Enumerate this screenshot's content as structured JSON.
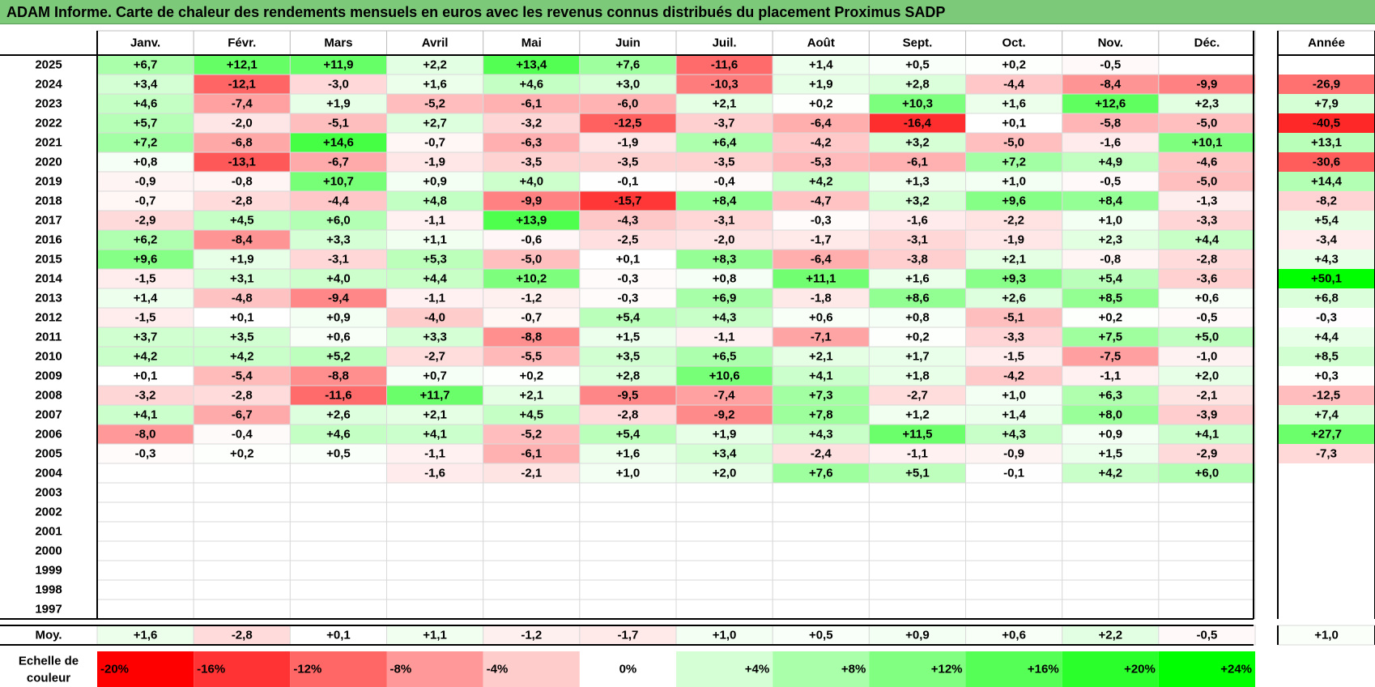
{
  "chart_data": {
    "type": "heatmap",
    "title": "ADAM Informe. Carte de chaleur des rendements mensuels en euros avec les revenus connus distribués du placement Proximus SADP",
    "months": [
      "Janv.",
      "Févr.",
      "Mars",
      "Avril",
      "Mai",
      "Juin",
      "Juil.",
      "Août",
      "Sept.",
      "Oct.",
      "Nov.",
      "Déc."
    ],
    "year_header": "Année",
    "years": [
      "2025",
      "2024",
      "2023",
      "2022",
      "2021",
      "2020",
      "2019",
      "2018",
      "2017",
      "2016",
      "2015",
      "2014",
      "2013",
      "2012",
      "2011",
      "2010",
      "2009",
      "2008",
      "2007",
      "2006",
      "2005",
      "2004",
      "2003",
      "2002",
      "2001",
      "2000",
      "1999",
      "1998",
      "1997"
    ],
    "values": [
      [
        "+6,7",
        "+12,1",
        "+11,9",
        "+2,2",
        "+13,4",
        "+7,6",
        "-11,6",
        "+1,4",
        "+0,5",
        "+0,2",
        "-0,5",
        ""
      ],
      [
        "+3,4",
        "-12,1",
        "-3,0",
        "+1,6",
        "+4,6",
        "+3,0",
        "-10,3",
        "+1,9",
        "+2,8",
        "-4,4",
        "-8,4",
        "-9,9"
      ],
      [
        "+4,6",
        "-7,4",
        "+1,9",
        "-5,2",
        "-6,1",
        "-6,0",
        "+2,1",
        "+0,2",
        "+10,3",
        "+1,6",
        "+12,6",
        "+2,3"
      ],
      [
        "+5,7",
        "-2,0",
        "-5,1",
        "+2,7",
        "-3,2",
        "-12,5",
        "-3,7",
        "-6,4",
        "-16,4",
        "+0,1",
        "-5,8",
        "-5,0"
      ],
      [
        "+7,2",
        "-6,8",
        "+14,6",
        "-0,7",
        "-6,3",
        "-1,9",
        "+6,4",
        "-4,2",
        "+3,2",
        "-5,0",
        "-1,6",
        "+10,1"
      ],
      [
        "+0,8",
        "-13,1",
        "-6,7",
        "-1,9",
        "-3,5",
        "-3,5",
        "-3,5",
        "-5,3",
        "-6,1",
        "+7,2",
        "+4,9",
        "-4,6"
      ],
      [
        "-0,9",
        "-0,8",
        "+10,7",
        "+0,9",
        "+4,0",
        "-0,1",
        "-0,4",
        "+4,2",
        "+1,3",
        "+1,0",
        "-0,5",
        "-5,0"
      ],
      [
        "-0,7",
        "-2,8",
        "-4,4",
        "+4,8",
        "-9,9",
        "-15,7",
        "+8,4",
        "-4,7",
        "+3,2",
        "+9,6",
        "+8,4",
        "-1,3"
      ],
      [
        "-2,9",
        "+4,5",
        "+6,0",
        "-1,1",
        "+13,9",
        "-4,3",
        "-3,1",
        "-0,3",
        "-1,6",
        "-2,2",
        "+1,0",
        "-3,3"
      ],
      [
        "+6,2",
        "-8,4",
        "+3,3",
        "+1,1",
        "-0,6",
        "-2,5",
        "-2,0",
        "-1,7",
        "-3,1",
        "-1,9",
        "+2,3",
        "+4,4"
      ],
      [
        "+9,6",
        "+1,9",
        "-3,1",
        "+5,3",
        "-5,0",
        "+0,1",
        "+8,3",
        "-6,4",
        "-3,8",
        "+2,1",
        "-0,8",
        "-2,8"
      ],
      [
        "-1,5",
        "+3,1",
        "+4,0",
        "+4,4",
        "+10,2",
        "-0,3",
        "+0,8",
        "+11,1",
        "+1,6",
        "+9,3",
        "+5,4",
        "-3,6"
      ],
      [
        "+1,4",
        "-4,8",
        "-9,4",
        "-1,1",
        "-1,2",
        "-0,3",
        "+6,9",
        "-1,8",
        "+8,6",
        "+2,6",
        "+8,5",
        "+0,6"
      ],
      [
        "-1,5",
        "+0,1",
        "+0,9",
        "-4,0",
        "-0,7",
        "+5,4",
        "+4,3",
        "+0,6",
        "+0,8",
        "-5,1",
        "+0,2",
        "-0,5"
      ],
      [
        "+3,7",
        "+3,5",
        "+0,6",
        "+3,3",
        "-8,8",
        "+1,5",
        "-1,1",
        "-7,1",
        "+0,2",
        "-3,3",
        "+7,5",
        "+5,0"
      ],
      [
        "+4,2",
        "+4,2",
        "+5,2",
        "-2,7",
        "-5,5",
        "+3,5",
        "+6,5",
        "+2,1",
        "+1,7",
        "-1,5",
        "-7,5",
        "-1,0"
      ],
      [
        "+0,1",
        "-5,4",
        "-8,8",
        "+0,7",
        "+0,2",
        "+2,8",
        "+10,6",
        "+4,1",
        "+1,8",
        "-4,2",
        "-1,1",
        "+2,0"
      ],
      [
        "-3,2",
        "-2,8",
        "-11,6",
        "+11,7",
        "+2,1",
        "-9,5",
        "-7,4",
        "+7,3",
        "-2,7",
        "+1,0",
        "+6,3",
        "-2,1"
      ],
      [
        "+4,1",
        "-6,7",
        "+2,6",
        "+2,1",
        "+4,5",
        "-2,8",
        "-9,2",
        "+7,8",
        "+1,2",
        "+1,4",
        "+8,0",
        "-3,9"
      ],
      [
        "-8,0",
        "-0,4",
        "+4,6",
        "+4,1",
        "-5,2",
        "+5,4",
        "+1,9",
        "+4,3",
        "+11,5",
        "+4,3",
        "+0,9",
        "+4,1"
      ],
      [
        "-0,3",
        "+0,2",
        "+0,5",
        "-1,1",
        "-6,1",
        "+1,6",
        "+3,4",
        "-2,4",
        "-1,1",
        "-0,9",
        "+1,5",
        "-2,9"
      ],
      [
        "",
        "",
        "",
        "-1,6",
        "-2,1",
        "+1,0",
        "+2,0",
        "+7,6",
        "+5,1",
        "-0,1",
        "+4,2",
        "+6,0"
      ],
      [
        "",
        "",
        "",
        "",
        "",
        "",
        "",
        "",
        "",
        "",
        "",
        ""
      ],
      [
        "",
        "",
        "",
        "",
        "",
        "",
        "",
        "",
        "",
        "",
        "",
        ""
      ],
      [
        "",
        "",
        "",
        "",
        "",
        "",
        "",
        "",
        "",
        "",
        "",
        ""
      ],
      [
        "",
        "",
        "",
        "",
        "",
        "",
        "",
        "",
        "",
        "",
        "",
        ""
      ],
      [
        "",
        "",
        "",
        "",
        "",
        "",
        "",
        "",
        "",
        "",
        "",
        ""
      ],
      [
        "",
        "",
        "",
        "",
        "",
        "",
        "",
        "",
        "",
        "",
        "",
        ""
      ],
      [
        "",
        "",
        "",
        "",
        "",
        "",
        "",
        "",
        "",
        "",
        "",
        ""
      ]
    ],
    "annual": [
      "",
      "-26,9",
      "+7,9",
      "-40,5",
      "+13,1",
      "-30,6",
      "+14,4",
      "-8,2",
      "+5,4",
      "-3,4",
      "+4,3",
      "+50,1",
      "+6,8",
      "-0,3",
      "+4,4",
      "+8,5",
      "+0,3",
      "-12,5",
      "+7,4",
      "+27,7",
      "-7,3",
      "",
      "",
      "",
      "",
      "",
      "",
      "",
      ""
    ],
    "average": {
      "label": "Moy.",
      "values": [
        "+1,6",
        "-2,8",
        "+0,1",
        "+1,1",
        "-1,2",
        "-1,7",
        "+1,0",
        "+0,5",
        "+0,9",
        "+0,6",
        "+2,2",
        "-0,5"
      ],
      "annual": "+1,0"
    },
    "scale": {
      "label_line1": "Echelle de",
      "label_line2": "couleur",
      "labels": [
        "-20%",
        "-16%",
        "-12%",
        "-8%",
        "-4%",
        "0%",
        "+4%",
        "+8%",
        "+12%",
        "+16%",
        "+20%",
        "+24%"
      ],
      "values": [
        -20,
        -16,
        -12,
        -8,
        -4,
        0,
        4,
        8,
        12,
        16,
        20,
        24
      ]
    },
    "colors": {
      "negative": "#ff0000",
      "positive": "#00ff00",
      "neutral": "#ffffff",
      "title_bg": "#7dc97a"
    }
  }
}
